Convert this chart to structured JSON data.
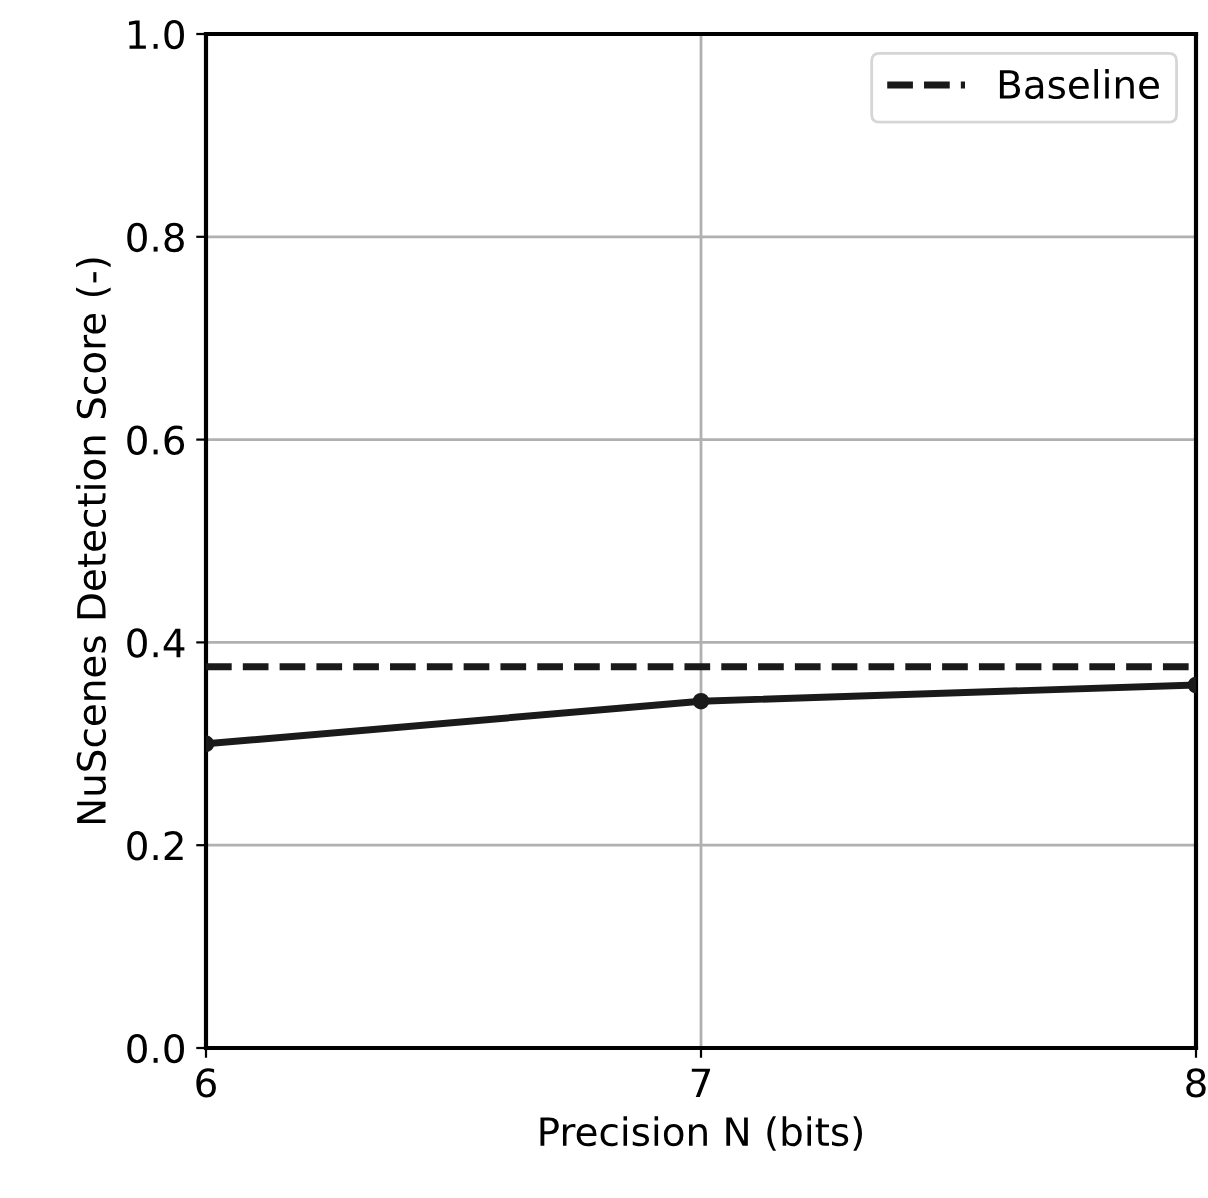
{
  "chart_data": {
    "type": "line",
    "xlabel": "Precision N (bits)",
    "ylabel": "NuScenes Detection Score (-)",
    "x": [
      6,
      7,
      8
    ],
    "series": [
      {
        "color": "#1a1a1a",
        "values": [
          0.3,
          0.342,
          0.358
        ]
      }
    ],
    "ref_lines": [
      {
        "axis": "y",
        "value": 0.376,
        "label": "Baseline",
        "color": "#1a1a1a",
        "line_style": "dashed"
      }
    ],
    "xlim": [
      6,
      8
    ],
    "xticks": [
      6,
      7,
      8
    ],
    "ylim": [
      0,
      1
    ],
    "yticks": [
      {
        "value": 0,
        "label": "0.0"
      },
      {
        "value": 0.2,
        "label": "0.2"
      },
      {
        "value": 0.4,
        "label": "0.4"
      },
      {
        "value": 0.6,
        "label": "0.6"
      },
      {
        "value": 0.8,
        "label": "0.8"
      },
      {
        "value": 1,
        "label": "1.0"
      }
    ],
    "grid": true,
    "legend": "top right",
    "marker": "circle",
    "line_style": "solid"
  }
}
